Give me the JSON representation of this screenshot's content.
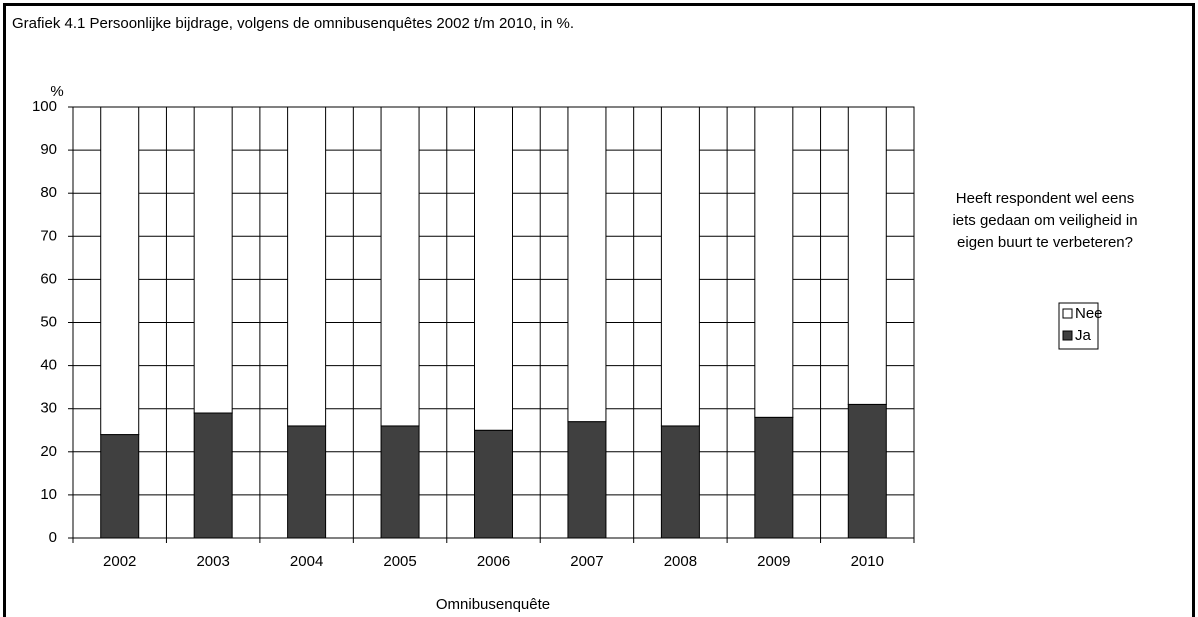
{
  "chart_data": {
    "type": "stacked_bar",
    "title": "Grafiek 4.1 Persoonlijke bijdrage, volgens de omnibusenquêtes 2002 t/m 2010, in %.",
    "y_label": "%",
    "x_label": "Omnibusenquête",
    "legend_title": [
      "Heeft respondent wel eens",
      "iets gedaan om veiligheid in",
      "eigen buurt te verbeteren?"
    ],
    "categories": [
      "2002",
      "2003",
      "2004",
      "2005",
      "2006",
      "2007",
      "2008",
      "2009",
      "2010"
    ],
    "series": [
      {
        "name": "Ja",
        "color": "#404040",
        "values": [
          24,
          29,
          26,
          26,
          25,
          27,
          26,
          28,
          31
        ]
      },
      {
        "name": "Nee",
        "color": "#ffffff",
        "values": [
          76,
          71,
          74,
          74,
          75,
          73,
          74,
          72,
          69
        ]
      }
    ],
    "ylim": [
      0,
      100
    ],
    "yticks": [
      0,
      10,
      20,
      30,
      40,
      50,
      60,
      70,
      80,
      90,
      100
    ],
    "grid": true,
    "legend": "right"
  }
}
